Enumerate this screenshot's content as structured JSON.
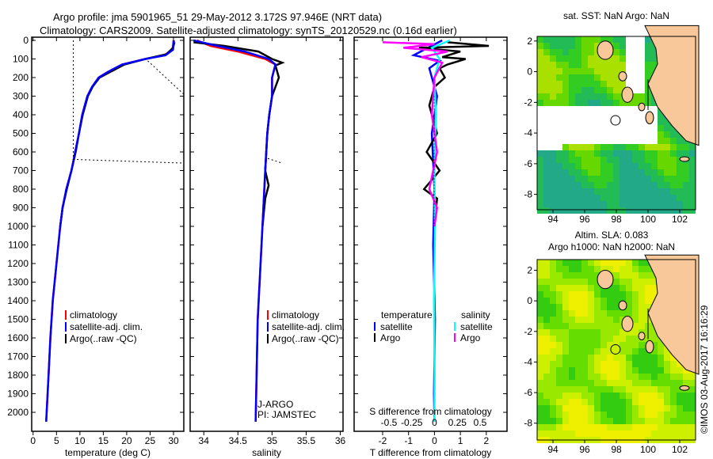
{
  "title": {
    "line1": "Argo profile: jma 5901965_51 29-May-2012 3.172S 97.946E (NRT data)",
    "line2": "Climatology: CARS2009. Satellite-adjusted climatology: synTS_20120529.nc (0.16d earlier)"
  },
  "colors": {
    "climatology": "#ff0000",
    "satellite": "#0000ff",
    "argo": "#000000",
    "sal_satellite": "#00ffff",
    "sal_argo": "#ff00ff"
  },
  "chart_data": [
    {
      "type": "line",
      "id": "temperature",
      "xlabel": "temperature (deg C)",
      "xlim": [
        -0.3,
        32.2
      ],
      "ylim": [
        2050,
        0
      ],
      "xticks": [
        0,
        5,
        10,
        15,
        20,
        25,
        30
      ],
      "yticks": [
        0,
        100,
        200,
        300,
        400,
        500,
        600,
        700,
        800,
        900,
        1000,
        1100,
        1200,
        1300,
        1400,
        1500,
        1600,
        1700,
        1800,
        1900,
        2000
      ],
      "legend": [
        "climatology",
        "satellite-adj. clim.",
        "Argo(..raw -QC)"
      ],
      "series": [
        {
          "name": "climatology",
          "color": "#ff0000",
          "x": [
            30,
            29.8,
            28,
            24,
            19,
            16,
            14,
            12.6,
            11.6,
            10.5,
            9.8,
            9,
            8.2,
            7.1,
            6.3,
            5.8,
            5,
            4.2,
            3.7,
            3.3,
            2.9,
            2.8
          ],
          "y": [
            0,
            50,
            80,
            100,
            130,
            170,
            200,
            250,
            300,
            400,
            500,
            600,
            700,
            800,
            900,
            1000,
            1200,
            1400,
            1600,
            1800,
            2000,
            2050
          ]
        },
        {
          "name": "Argo(..raw -QC)",
          "color": "#000000",
          "x": [
            30.2,
            29.9,
            28.5,
            24,
            19.5,
            16.5,
            14.2,
            12.7,
            11.7,
            10.6,
            9.8,
            9.1,
            8.2,
            7.2,
            6.3,
            5.8
          ],
          "y": [
            10,
            40,
            75,
            100,
            130,
            170,
            200,
            250,
            300,
            400,
            500,
            600,
            700,
            800,
            900,
            1000
          ]
        },
        {
          "name": "satellite-adj. clim.",
          "color": "#0000ff",
          "x": [
            30.1,
            29.9,
            28.3,
            24,
            19,
            16,
            14,
            12.6,
            11.6,
            10.5,
            9.8,
            9,
            8.2,
            7.1,
            6.3,
            5.8,
            5,
            4.2,
            3.7,
            3.3,
            2.9,
            2.8
          ],
          "y": [
            0,
            50,
            80,
            100,
            130,
            170,
            200,
            250,
            300,
            400,
            500,
            600,
            700,
            800,
            900,
            1000,
            1200,
            1400,
            1600,
            1800,
            2000,
            2050
          ]
        }
      ]
    },
    {
      "type": "line",
      "id": "salinity",
      "xlabel": "salinity",
      "xlim": [
        33.8,
        36.04
      ],
      "ylim": [
        2050,
        0
      ],
      "xticks": [
        34,
        34.5,
        35,
        35.5,
        36
      ],
      "legend": [
        "climatology",
        "satellite-adj. clim.",
        "Argo(..raw -QC)"
      ],
      "annotations": [
        "J-ARGO",
        "PI: JAMSTEC"
      ],
      "series": [
        {
          "name": "climatology",
          "color": "#ff0000",
          "x": [
            33.9,
            34.1,
            34.5,
            34.9,
            35.05,
            35.0,
            35.0,
            34.96,
            34.93,
            34.9,
            34.86,
            34.79,
            34.76
          ],
          "y": [
            0,
            30,
            60,
            100,
            130,
            200,
            300,
            400,
            500,
            700,
            1000,
            1500,
            2050
          ]
        },
        {
          "name": "Argo(..raw -QC)",
          "color": "#000000",
          "x": [
            33.85,
            34.3,
            34.8,
            35.0,
            35.15,
            35.05,
            35.1,
            35.0,
            34.96,
            34.93,
            34.9,
            34.95,
            34.9,
            34.86
          ],
          "y": [
            10,
            30,
            60,
            100,
            120,
            135,
            200,
            300,
            400,
            500,
            700,
            780,
            850,
            1000
          ]
        },
        {
          "name": "satellite-adj. clim.",
          "color": "#0000ff",
          "x": [
            33.85,
            34.2,
            34.6,
            34.95,
            35.05,
            35.0,
            35.0,
            34.96,
            34.93,
            34.9,
            34.86,
            34.79,
            34.76
          ],
          "y": [
            0,
            30,
            60,
            100,
            130,
            200,
            300,
            400,
            500,
            700,
            1000,
            1500,
            2050
          ]
        }
      ]
    },
    {
      "type": "line",
      "id": "difference",
      "xlabel": "T difference from climatology",
      "x2label": "S difference from climatology",
      "xlim": [
        -3.1,
        2.8
      ],
      "ylim": [
        2050,
        0
      ],
      "xticks": [
        -2,
        -1,
        0,
        1,
        2
      ],
      "x2ticks": [
        "-0.5",
        "-0.25",
        "0",
        "0.25",
        "0.5"
      ],
      "legend": {
        "temperature": "temperature",
        "salinity": "salinity",
        "items": [
          "satellite",
          "Argo",
          "satellite",
          "Argo"
        ]
      },
      "series": [
        {
          "name": "T satellite",
          "color": "#0000ff",
          "x": [
            0.3,
            -0.8,
            0.2,
            -0.2,
            0.1,
            -0.1,
            0,
            -0.05,
            0.02,
            -0.02,
            0
          ],
          "y": [
            0,
            80,
            110,
            150,
            300,
            500,
            800,
            1100,
            1500,
            1900,
            2050
          ]
        },
        {
          "name": "T Argo",
          "color": "#000000",
          "x": [
            0.5,
            2.1,
            -0.6,
            1.0,
            0.3,
            1.2,
            0.5,
            0.2,
            0.4,
            0,
            -0.2,
            0.1,
            -0.3,
            0.2,
            -0.4,
            0.1,
            0
          ],
          "y": [
            10,
            30,
            40,
            60,
            90,
            100,
            130,
            150,
            200,
            250,
            350,
            500,
            600,
            700,
            800,
            850,
            1000
          ]
        },
        {
          "name": "S satellite",
          "color": "#00ffff",
          "x": [
            0.6,
            -0.1,
            0.2,
            0,
            0.05,
            0,
            0.02,
            -0.02,
            0.01,
            0
          ],
          "y": [
            0,
            40,
            100,
            200,
            400,
            700,
            1000,
            1400,
            1800,
            2050
          ]
        },
        {
          "name": "S Argo",
          "color": "#ff00ff",
          "x": [
            -2.0,
            0,
            -1.2,
            0.5,
            -0.5,
            0.3,
            0,
            -0.1,
            0.1,
            -0.2,
            0.1,
            0
          ],
          "y": [
            10,
            20,
            40,
            60,
            90,
            120,
            200,
            400,
            600,
            800,
            900,
            1000
          ]
        }
      ]
    }
  ],
  "maps": [
    {
      "id": "sst",
      "title1": "sat. SST: NaN Argo: NaN",
      "lonlim": [
        93,
        103
      ],
      "latlim": [
        -9,
        2.3
      ],
      "xticks": [
        94,
        96,
        98,
        100,
        102
      ],
      "yticks": [
        2,
        0,
        -2,
        -4,
        -6,
        -8
      ],
      "float": [
        97.946,
        -3.172
      ]
    },
    {
      "id": "sla",
      "title1": "Altim. SLA: 0.083",
      "title2": "Argo h1000: NaN h2000: NaN",
      "lonlim": [
        93,
        103
      ],
      "latlim": [
        -9.1,
        2.7
      ],
      "xticks": [
        94,
        96,
        98,
        100,
        102
      ],
      "yticks": [
        2,
        0,
        -2,
        -4,
        -6,
        -8
      ],
      "float": [
        97.946,
        -3.172
      ]
    }
  ],
  "timestamp": "©IMOS 03-Aug-2017 16:16:29"
}
